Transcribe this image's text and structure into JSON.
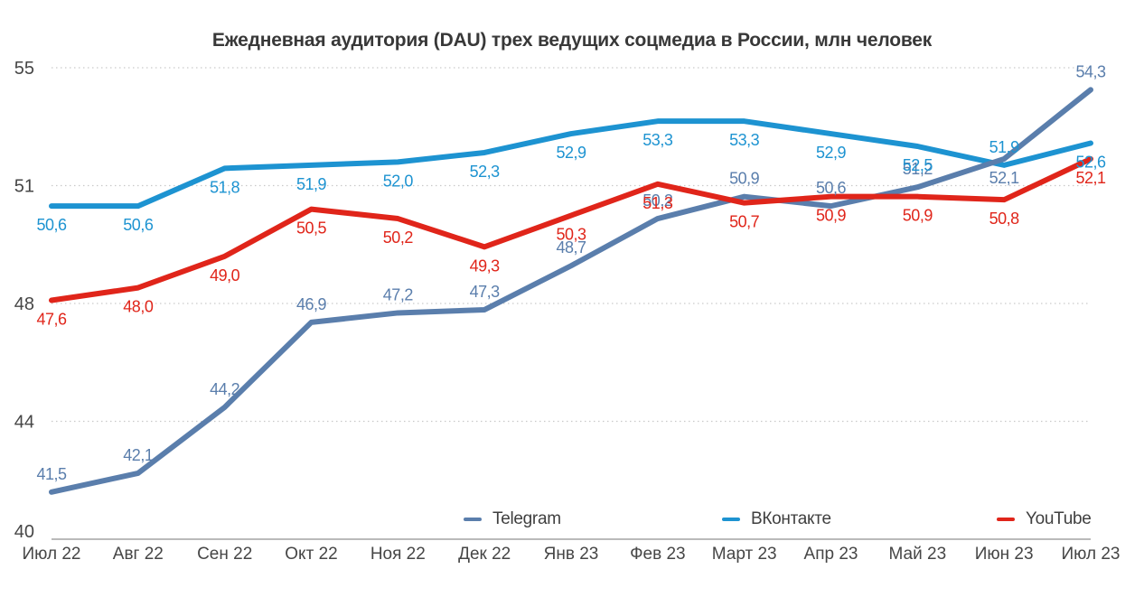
{
  "chart_data": {
    "type": "line",
    "title": "Ежедневная аудитория (DAU) трех ведущих соцмедиа в России, млн человек",
    "categories": [
      "Июл 22",
      "Авг 22",
      "Сен 22",
      "Окт 22",
      "Ноя 22",
      "Дек 22",
      "Янв 23",
      "Фев 23",
      "Март 23",
      "Апр 23",
      "Май 23",
      "Июн 23",
      "Июл 23"
    ],
    "ylim": [
      40,
      55
    ],
    "y_tick_labels": [
      "55",
      "51",
      "48",
      "44",
      "40"
    ],
    "grid": "horizontal-dotted",
    "legend_position": "bottom-inside",
    "decimal_separator": ",",
    "series": [
      {
        "name": "Telegram",
        "color": "#5a7eac",
        "values": [
          41.5,
          42.1,
          44.2,
          46.9,
          47.2,
          47.3,
          48.7,
          50.2,
          50.9,
          50.6,
          51.2,
          52.1,
          54.3
        ],
        "point_labels": [
          "41,5",
          "42,1",
          "44,2",
          "46,9",
          "47,2",
          "47,3",
          "48,7",
          "50,2",
          "50,9",
          "50,6",
          "51,2",
          "52,1",
          "54,3"
        ],
        "label_side_default": "above",
        "label_side_exceptions": {
          "11": "below"
        }
      },
      {
        "name": "ВКонтакте",
        "color": "#1d93d1",
        "values": [
          50.6,
          50.6,
          51.8,
          51.9,
          52.0,
          52.3,
          52.9,
          53.3,
          53.3,
          52.9,
          52.5,
          51.9,
          52.6
        ],
        "point_labels": [
          "50,6",
          "50,6",
          "51,8",
          "51,9",
          "52,0",
          "52,3",
          "52,9",
          "53,3",
          "53,3",
          "52,9",
          "52,5",
          "51,9",
          "52,6"
        ],
        "label_side_default": "below",
        "label_side_exceptions": {
          "11": "above"
        }
      },
      {
        "name": "YouTube",
        "color": "#e0251a",
        "values": [
          47.6,
          48.0,
          49.0,
          50.5,
          50.2,
          49.3,
          50.3,
          51.3,
          50.7,
          50.9,
          50.9,
          50.8,
          52.1
        ],
        "point_labels": [
          "47,6",
          "48,0",
          "49,0",
          "50,5",
          "50,2",
          "49,3",
          "50,3",
          "51,3",
          "50,7",
          "50,9",
          "50,9",
          "50,8",
          "52,1"
        ],
        "label_side_default": "below",
        "label_side_exceptions": {}
      }
    ],
    "colors": {
      "gridline": "#c9c9c9",
      "axis_line": "#a3a3a3",
      "tick_label": "#464646",
      "title": "#383838",
      "legend_label": "#3f3f3f"
    }
  }
}
